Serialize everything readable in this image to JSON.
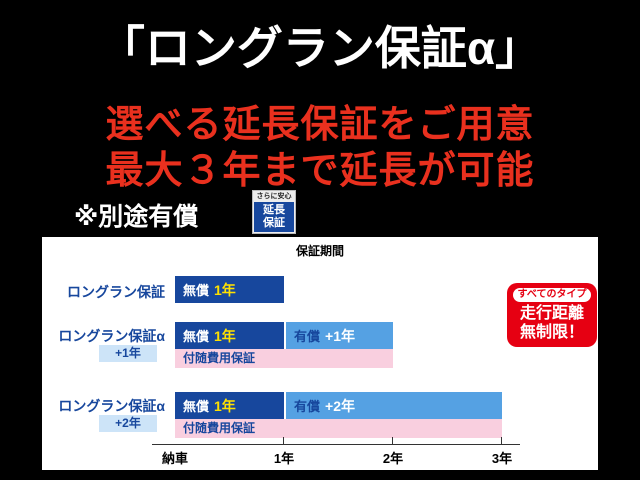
{
  "colors": {
    "background": "#000000",
    "accent_red": "#e9301e",
    "badge_red": "#e60012",
    "navy_blue": "#17479d",
    "light_blue": "#55a1e3",
    "pink": "#f9cfdf",
    "highlight_yellow": "#ffe100"
  },
  "header": {
    "title": "「ロングラン保証α」",
    "line1": "選べる延長保証をご用意",
    "line2": "最大３年まで延長が可能",
    "note": "※別途有償",
    "stamp": {
      "top": "さらに安心",
      "body_line1": "延長",
      "body_line2": "保証"
    }
  },
  "panel": {
    "title": "保証期間",
    "rows": [
      {
        "label": "ロングラン保証",
        "free_prefix": "無償",
        "free_value": "1年"
      },
      {
        "label": "ロングラン保証α",
        "sub_label": "+1年",
        "free_prefix": "無償",
        "free_value": "1年",
        "paid_prefix": "有償",
        "paid_value": "+1年",
        "pink_label": "付随費用保証"
      },
      {
        "label": "ロングラン保証α",
        "sub_label": "+2年",
        "free_prefix": "無償",
        "free_value": "1年",
        "paid_prefix": "有償",
        "paid_value": "+2年",
        "pink_label": "付随費用保証"
      }
    ],
    "axis_labels": [
      "納車",
      "1年",
      "2年",
      "3年"
    ],
    "badge": {
      "pill": "すべてのタイプ",
      "line1": "走行距離",
      "line2": "無制限！"
    }
  },
  "chart_data": {
    "type": "bar",
    "title": "保証期間",
    "x_ticks": [
      "納車",
      "1年",
      "2年",
      "3年"
    ],
    "x_unit": "年",
    "series": [
      {
        "name": "ロングラン保証",
        "segments": [
          {
            "label": "無償 1年",
            "start": 0,
            "end": 1
          }
        ]
      },
      {
        "name": "ロングラン保証α +1年",
        "segments": [
          {
            "label": "無償 1年",
            "start": 0,
            "end": 1
          },
          {
            "label": "有償 +1年",
            "start": 1,
            "end": 2
          },
          {
            "label": "付随費用保証",
            "start": 0,
            "end": 2
          }
        ]
      },
      {
        "name": "ロングラン保証α +2年",
        "segments": [
          {
            "label": "無償 1年",
            "start": 0,
            "end": 1
          },
          {
            "label": "有償 +2年",
            "start": 1,
            "end": 3
          },
          {
            "label": "付随費用保証",
            "start": 0,
            "end": 3
          }
        ]
      }
    ],
    "annotations": [
      "すべてのタイプ 走行距離 無制限！",
      "※別途有償"
    ]
  }
}
